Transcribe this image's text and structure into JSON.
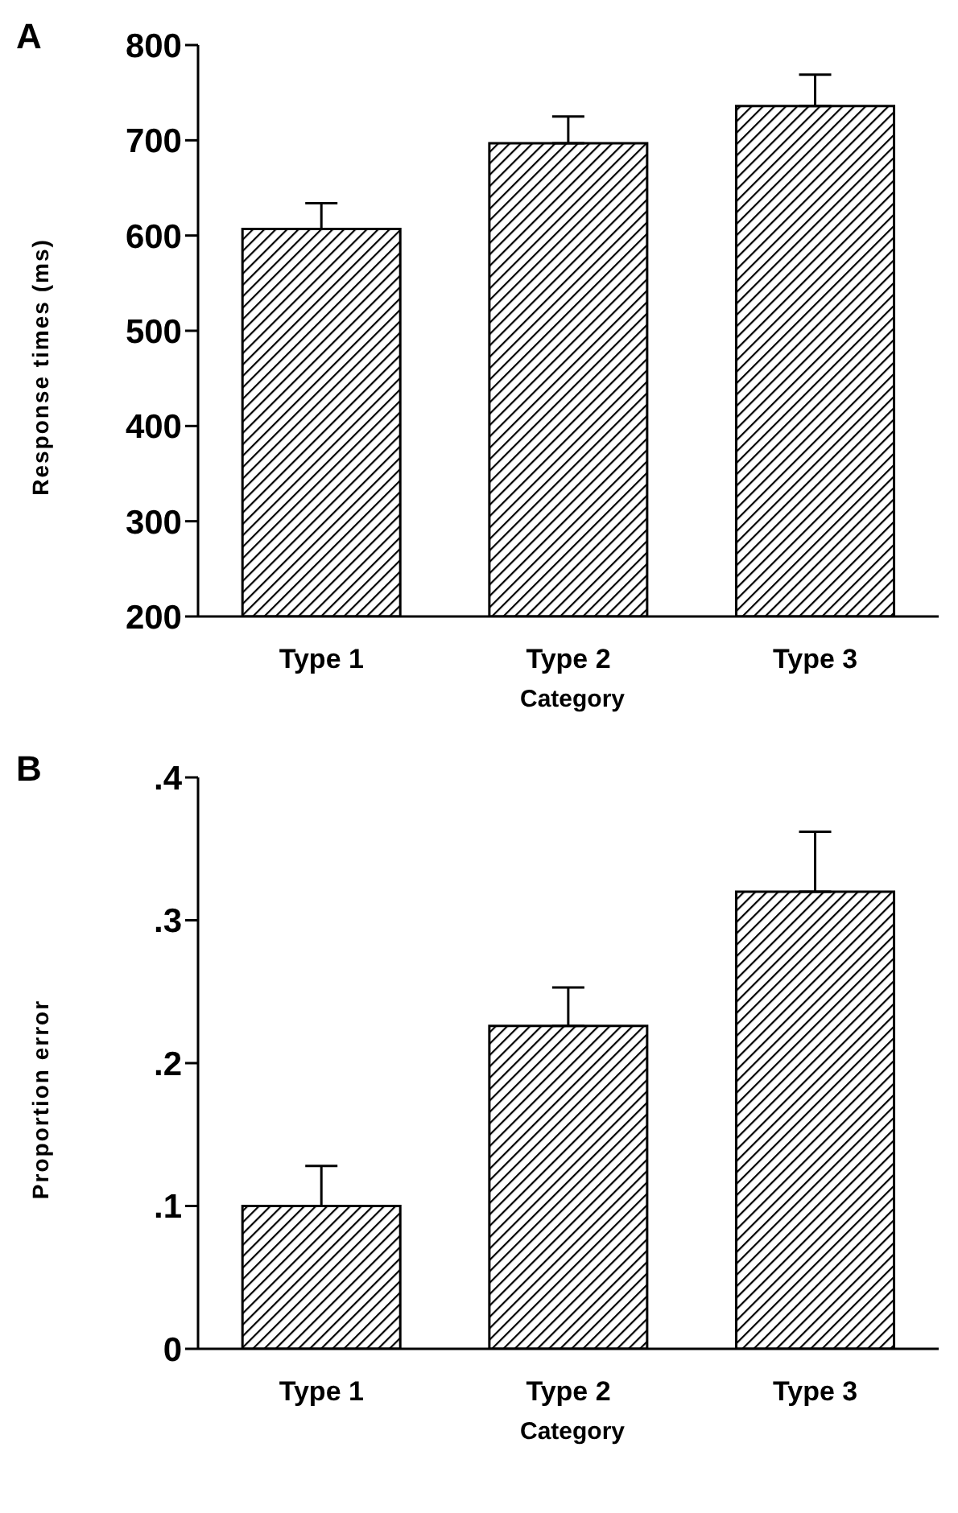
{
  "chart_data": [
    {
      "type": "bar",
      "title": "A",
      "xlabel": "Category",
      "ylabel": "Response times (ms)",
      "categories": [
        "Type 1",
        "Type 2",
        "Type 3"
      ],
      "values": [
        607,
        697,
        736
      ],
      "errors": [
        [
          607,
          634
        ],
        [
          697,
          725
        ],
        [
          736,
          769
        ]
      ],
      "color": "#000000",
      "ylim": [
        200,
        800
      ],
      "yticks": [
        200,
        300,
        400,
        500,
        600,
        700,
        800
      ],
      "grid": false,
      "legend": false
    },
    {
      "type": "bar",
      "title": "B",
      "xlabel": "Category",
      "ylabel": "Proportion error",
      "categories": [
        "Type 1",
        "Type 2",
        "Type 3"
      ],
      "values": [
        0.1,
        0.226,
        0.32
      ],
      "errors": [
        [
          0.1,
          0.128
        ],
        [
          0.226,
          0.253
        ],
        [
          0.32,
          0.362
        ]
      ],
      "color": "#000000",
      "ylim": [
        0,
        0.4
      ],
      "yticks": [
        0,
        {
          "value": 0.1,
          "label": ".1"
        },
        {
          "value": 0.2,
          "label": ".2"
        },
        {
          "value": 0.3,
          "label": ".3"
        },
        {
          "value": 0.4,
          "label": ".4"
        }
      ],
      "grid": false,
      "legend": false
    }
  ]
}
